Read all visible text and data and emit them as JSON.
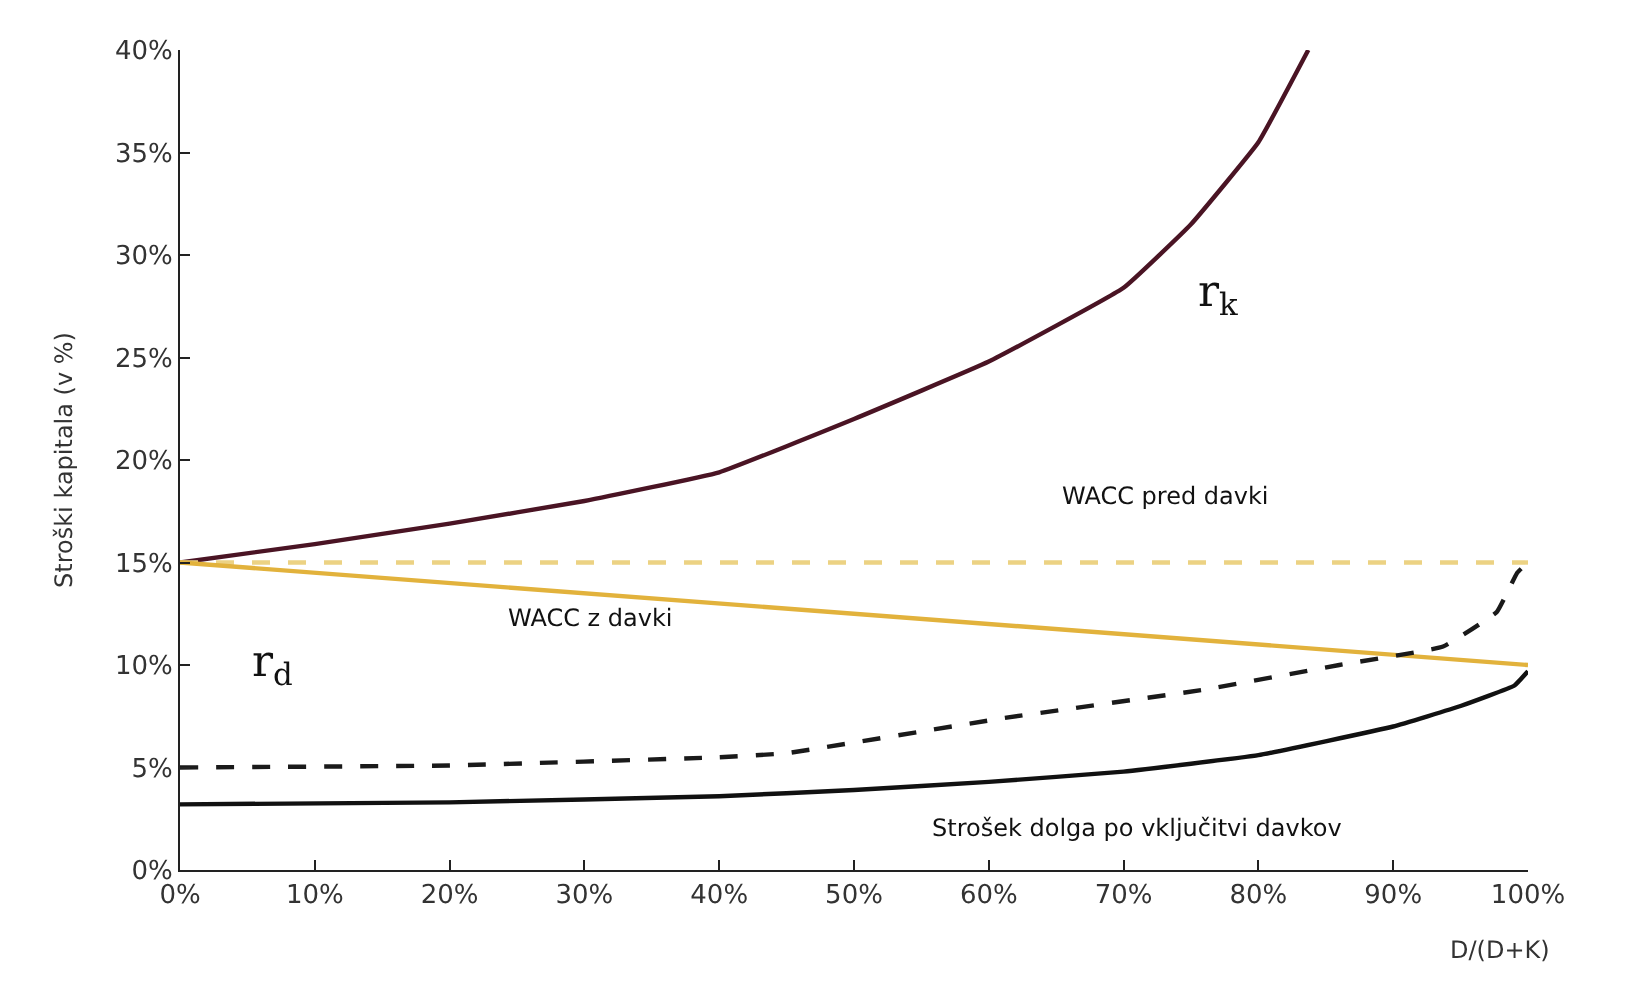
{
  "chart_data": {
    "type": "line",
    "xlabel": "D/(D+K)",
    "ylabel": "Stroški kapitala (v %)",
    "xlim": [
      0,
      100
    ],
    "ylim": [
      0,
      40
    ],
    "xticks": [
      {
        "value": 0,
        "label": "0%"
      },
      {
        "value": 10,
        "label": "10%"
      },
      {
        "value": 20,
        "label": "20%"
      },
      {
        "value": 30,
        "label": "30%"
      },
      {
        "value": 40,
        "label": "40%"
      },
      {
        "value": 50,
        "label": "50%"
      },
      {
        "value": 60,
        "label": "60%"
      },
      {
        "value": 70,
        "label": "70%"
      },
      {
        "value": 80,
        "label": "80%"
      },
      {
        "value": 90,
        "label": "90%"
      },
      {
        "value": 100,
        "label": "100%"
      }
    ],
    "yticks": [
      {
        "value": 0,
        "label": "0%"
      },
      {
        "value": 5,
        "label": "5%"
      },
      {
        "value": 10,
        "label": "10%"
      },
      {
        "value": 15,
        "label": "15%"
      },
      {
        "value": 20,
        "label": "20%"
      },
      {
        "value": 25,
        "label": "25%"
      },
      {
        "value": 30,
        "label": "30%"
      },
      {
        "value": 35,
        "label": "35%"
      },
      {
        "value": 40,
        "label": "40%"
      }
    ],
    "marker": "none",
    "series": [
      {
        "color": "#4a1424",
        "line_style": "solid",
        "x": [
          0,
          10,
          20,
          30,
          40,
          50,
          60,
          70,
          75,
          80,
          83.7
        ],
        "values": [
          15,
          15.9,
          16.9,
          18,
          19.4,
          22,
          24.8,
          28.4,
          31.5,
          35.5,
          40
        ]
      },
      {
        "color": "#ecd283",
        "line_style": "dashed",
        "x": [
          0,
          100
        ],
        "values": [
          15,
          15
        ]
      },
      {
        "color": "#e2b23c",
        "line_style": "solid",
        "x": [
          0,
          100
        ],
        "values": [
          15,
          10
        ]
      },
      {
        "color": "#1a1a1a",
        "line_style": "dashed",
        "x": [
          0,
          20,
          40,
          45,
          61,
          76,
          86,
          93.7,
          97.7,
          99.2,
          100
        ],
        "values": [
          5,
          5.1,
          5.5,
          5.7,
          7.4,
          8.8,
          10,
          10.9,
          12.6,
          14.5,
          15
        ]
      },
      {
        "color": "#111111",
        "line_style": "solid",
        "x": [
          0,
          20,
          40,
          50,
          60,
          70,
          80,
          90,
          95,
          99,
          100
        ],
        "values": [
          3.2,
          3.3,
          3.6,
          3.9,
          4.3,
          4.8,
          5.6,
          7,
          8,
          9,
          9.7
        ]
      }
    ],
    "annotations": [
      "r$_{k}$",
      "r$_{d}$",
      "WACC pred davki",
      "WACC z davki",
      "Strošek dolga po vključitvi davkov"
    ]
  }
}
